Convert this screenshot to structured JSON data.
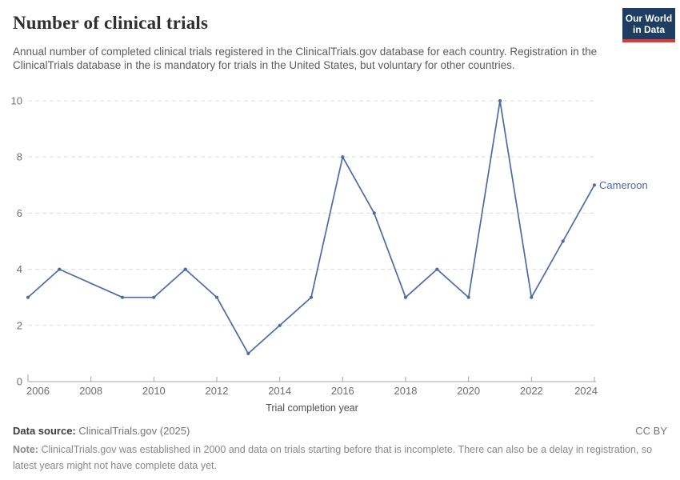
{
  "header": {
    "title": "Number of clinical trials",
    "subtitle_lines": [
      "Annual number of completed clinical trials registered in the ClinicalTrials.gov database for each country.",
      "Registration in the ClinicalTrials database in the is mandatory for trials in the United States, but voluntary for",
      "other countries."
    ],
    "logo_line1": "Our World",
    "logo_line2": "in Data",
    "logo_bg_color": "#1d3d63",
    "logo_stripe_color": "#dc3a34"
  },
  "chart_data": {
    "type": "line",
    "title": "Number of clinical trials",
    "xlabel": "Trial completion year",
    "ylabel": "",
    "xlim": [
      2006,
      2024
    ],
    "ylim": [
      0,
      10
    ],
    "x_ticks": [
      2006,
      2008,
      2010,
      2012,
      2014,
      2016,
      2018,
      2020,
      2022,
      2024
    ],
    "y_ticks": [
      0,
      2,
      4,
      6,
      8,
      10
    ],
    "grid": "horizontal-dashed",
    "legend": "inline-end-label",
    "series": [
      {
        "name": "Cameroon",
        "color": "#4c6ba3",
        "points": [
          [
            2006,
            3
          ],
          [
            2007,
            4
          ],
          [
            2009,
            3
          ],
          [
            2010,
            3
          ],
          [
            2011,
            4
          ],
          [
            2012,
            3
          ],
          [
            2013,
            1
          ],
          [
            2014,
            2
          ],
          [
            2015,
            3
          ],
          [
            2016,
            8
          ],
          [
            2017,
            6
          ],
          [
            2018,
            3
          ],
          [
            2019,
            4
          ],
          [
            2020,
            3
          ],
          [
            2021,
            10
          ],
          [
            2022,
            3
          ],
          [
            2023,
            5
          ],
          [
            2024,
            7
          ]
        ]
      }
    ]
  },
  "footer": {
    "data_source_label": "Data source:",
    "data_source_value": "ClinicalTrials.gov (2025)",
    "license": "CC BY",
    "note_label": "Note:",
    "note_text": "ClinicalTrials.gov was established in 2000 and data on trials starting before that is incomplete. There can also be a delay in registration, so latest years might not have complete data yet."
  }
}
